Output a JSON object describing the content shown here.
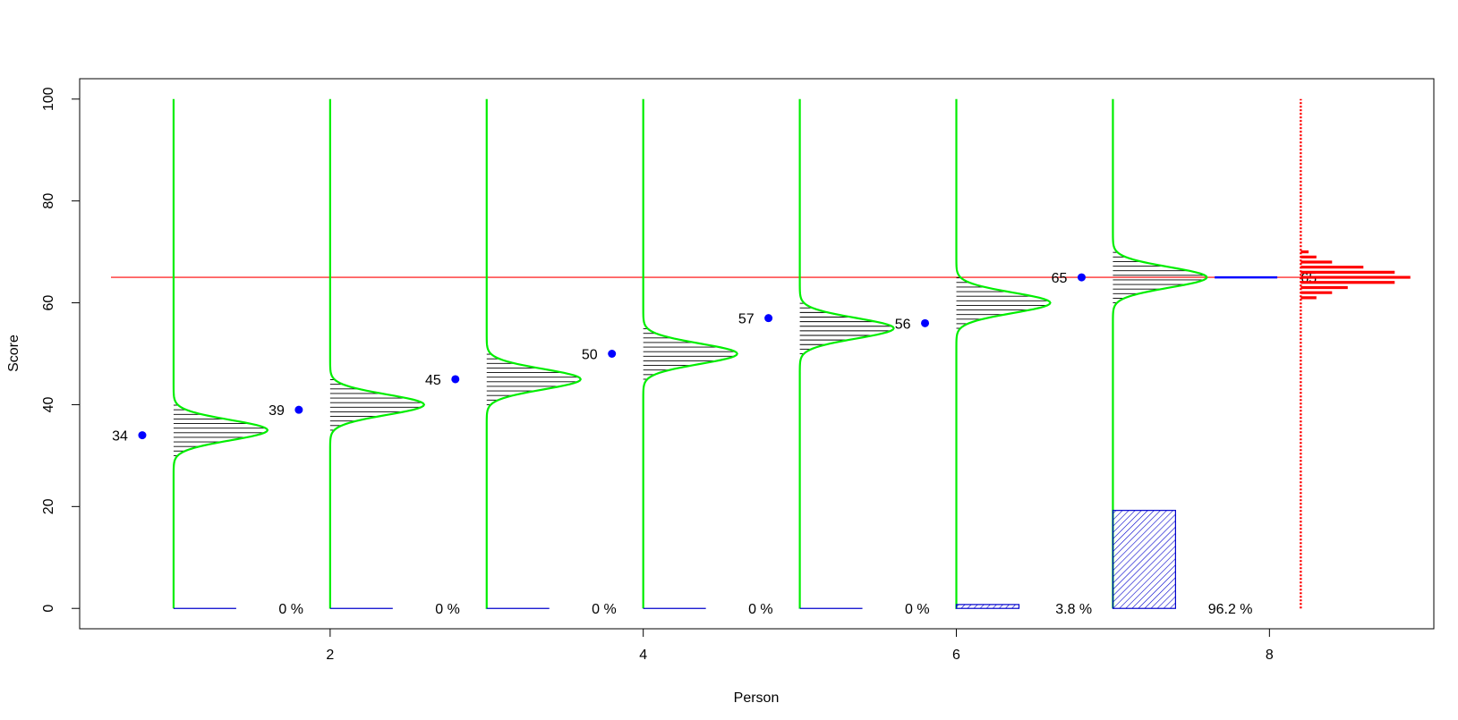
{
  "chart_data": {
    "type": "line",
    "title": "",
    "xlabel": "Person",
    "ylabel": "Score",
    "xlim": [
      0.4,
      9.05
    ],
    "ylim": [
      -4,
      104
    ],
    "x_ticks": [
      2,
      4,
      6,
      8
    ],
    "y_ticks": [
      0,
      20,
      40,
      60,
      80,
      100
    ],
    "x_tick_labels": [
      "2",
      "4",
      "6",
      "8"
    ],
    "y_tick_labels": [
      "0",
      "20",
      "40",
      "60",
      "80",
      "100"
    ],
    "grid": false,
    "threshold": {
      "value": 65,
      "label": "65",
      "x_from": 0.6,
      "x_to": 8.4
    },
    "persons": [
      {
        "x": 1,
        "observed": 34,
        "label": "34",
        "mean": 35,
        "percent": 0,
        "percent_label": "0 %"
      },
      {
        "x": 2,
        "observed": 39,
        "label": "39",
        "mean": 40,
        "percent": 0,
        "percent_label": "0 %"
      },
      {
        "x": 3,
        "observed": 45,
        "label": "45",
        "mean": 45,
        "percent": 0,
        "percent_label": "0 %"
      },
      {
        "x": 4,
        "observed": 50,
        "label": "50",
        "mean": 50,
        "percent": 0,
        "percent_label": "0 %"
      },
      {
        "x": 5,
        "observed": 57,
        "label": "57",
        "mean": 55,
        "percent": 0,
        "percent_label": "0 %"
      },
      {
        "x": 6,
        "observed": 56,
        "label": "56",
        "mean": 60,
        "percent": 3.8,
        "percent_label": "3.8 %"
      },
      {
        "x": 7,
        "observed": 65,
        "label": "65",
        "mean": 65,
        "percent": 96.2,
        "percent_label": "96.2 %"
      }
    ],
    "summary_marker": {
      "x": 7.85,
      "value": 65,
      "label": "65"
    },
    "histogram": {
      "x": 8.2,
      "bins": [
        {
          "y": 61,
          "count": 1
        },
        {
          "y": 62,
          "count": 2
        },
        {
          "y": 63,
          "count": 3
        },
        {
          "y": 64,
          "count": 6
        },
        {
          "y": 65,
          "count": 7
        },
        {
          "y": 66,
          "count": 6
        },
        {
          "y": 67,
          "count": 4
        },
        {
          "y": 68,
          "count": 2
        },
        {
          "y": 69,
          "count": 1
        },
        {
          "y": 70,
          "count": 0.5
        }
      ]
    },
    "colors": {
      "density": "#00ee00",
      "hatch": "#000000",
      "observed": "#0000ff",
      "threshold": "#ff0000",
      "histogram": "#ff0000",
      "percent_bar": "#0000cc",
      "summary_label": "#0000cc"
    }
  }
}
